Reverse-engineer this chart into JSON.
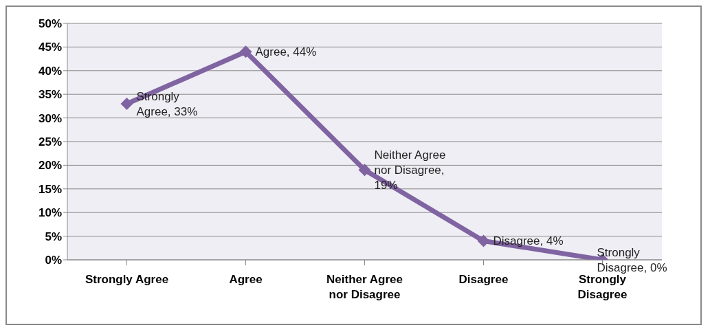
{
  "chart_data": {
    "type": "line",
    "categories": [
      "Strongly Agree",
      "Agree",
      "Neither Agree nor Disagree",
      "Disagree",
      "Strongly Disagree"
    ],
    "series": [
      {
        "color": "#8064a2",
        "values": [
          33,
          44,
          19,
          4,
          0
        ],
        "value_labels": [
          "Strongly Agree, 33%",
          "Agree, 44%",
          "Neither Agree nor Disagree, 19%",
          "Disagree, 4%",
          "Strongly Disagree, 0%"
        ]
      }
    ],
    "ylim": [
      0,
      50
    ],
    "yticks": [
      {
        "value": 0,
        "label": "0%"
      },
      {
        "value": 5,
        "label": "5%"
      },
      {
        "value": 10,
        "label": "10%"
      },
      {
        "value": 15,
        "label": "15%"
      },
      {
        "value": 20,
        "label": "20%"
      },
      {
        "value": 25,
        "label": "25%"
      },
      {
        "value": 30,
        "label": "30%"
      },
      {
        "value": 35,
        "label": "35%"
      },
      {
        "value": 40,
        "label": "40%"
      },
      {
        "value": 45,
        "label": "45%"
      },
      {
        "value": 50,
        "label": "50%"
      }
    ],
    "grid": "y",
    "legend": false,
    "marker": "diamond",
    "line_style": "solid"
  }
}
